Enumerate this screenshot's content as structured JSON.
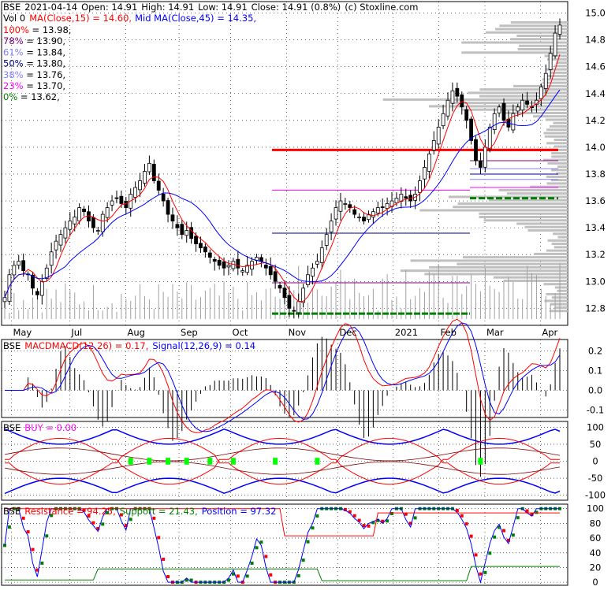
{
  "header": {
    "symbol": "BSE",
    "date": "2021-04-14",
    "open": "Open: 14.91",
    "high": "High: 14.91",
    "low": "Low: 14.91",
    "close": "Close: 14.91 (0.8%)",
    "copyright": "(c) Stoxline.com",
    "vol": "Vol 0",
    "ma15": "MA(Close,15) = 14.60,",
    "ma45": "Mid MA(Close,45) = 14.35,"
  },
  "fib_legend": [
    {
      "label": "100% = 13.98,",
      "color": "#ff0000"
    },
    {
      "label": "78% = 13.90,",
      "color": "#800080"
    },
    {
      "label": "61% = 13.84,",
      "color": "#8080ff"
    },
    {
      "label": "50% = 13.80,",
      "color": "#000080"
    },
    {
      "label": "38% = 13.76,",
      "color": "#8080ff"
    },
    {
      "label": "23% = 13.70,",
      "color": "#ff00ff"
    },
    {
      "label": "0% = 13.62,",
      "color": "#008000"
    }
  ],
  "panels": {
    "macd": {
      "symbol": "BSE",
      "name": "MACD",
      "label": "MACD(12,26) = 0.17,",
      "signal": "Signal(12,26,9) = 0.14"
    },
    "buy": {
      "symbol": "BSE",
      "label": "BUY = 0.00"
    },
    "srp": {
      "symbol": "BSE",
      "resistance": "Resistance = 94.25,",
      "support": "Support = 21.43,",
      "position": "Position = 97.32"
    }
  },
  "colors": {
    "up": "#008000",
    "down": "#ff0000",
    "ma_fast": "#ff0000",
    "ma_mid": "#0000ff",
    "volume_profile": "#c0c0c0",
    "grid": "#000000"
  },
  "chart_data": [
    {
      "type": "candlestick",
      "title": "BSE 2021-04-14",
      "x_labels": [
        "May",
        "Jul",
        "Aug",
        "Sep",
        "Oct",
        "Nov",
        "Dec",
        "2021",
        "Feb",
        "Mar",
        "Apr"
      ],
      "y_ticks": [
        "15.0",
        "14.8",
        "14.6",
        "14.4",
        "14.2",
        "14.0",
        "13.8",
        "13.6",
        "13.4",
        "13.2",
        "13.0",
        "12.8"
      ],
      "ylim": [
        12.72,
        15.05
      ],
      "close": [
        12.88,
        13.05,
        13.12,
        13.15,
        13.08,
        13.05,
        12.95,
        12.9,
        13.0,
        13.1,
        13.22,
        13.3,
        13.35,
        13.4,
        13.45,
        13.48,
        13.55,
        13.52,
        13.45,
        13.4,
        13.38,
        13.5,
        13.55,
        13.6,
        13.62,
        13.58,
        13.55,
        13.65,
        13.7,
        13.75,
        13.82,
        13.88,
        13.75,
        13.68,
        13.6,
        13.5,
        13.45,
        13.4,
        13.35,
        13.38,
        13.32,
        13.28,
        13.25,
        13.22,
        13.18,
        13.15,
        13.12,
        13.1,
        13.12,
        13.15,
        13.1,
        13.08,
        13.12,
        13.15,
        13.18,
        13.15,
        13.1,
        13.05,
        13.0,
        12.95,
        12.88,
        12.8,
        12.78,
        12.85,
        12.95,
        13.05,
        13.1,
        13.15,
        13.25,
        13.35,
        13.45,
        13.55,
        13.6,
        13.58,
        13.55,
        13.5,
        13.48,
        13.45,
        13.5,
        13.52,
        13.55,
        13.55,
        13.58,
        13.6,
        13.62,
        13.65,
        13.62,
        13.6,
        13.65,
        13.75,
        13.85,
        13.95,
        14.05,
        14.15,
        14.25,
        14.35,
        14.42,
        14.38,
        14.3,
        14.2,
        14.05,
        13.9,
        13.85,
        14.0,
        14.15,
        14.25,
        14.3,
        14.2,
        14.15,
        14.25,
        14.3,
        14.35,
        14.32,
        14.3,
        14.35,
        14.45,
        14.55,
        14.7,
        14.85,
        14.91
      ],
      "ma15_label": "MA(Close,15) = 14.60",
      "ma45_label": "Mid MA(Close,45) = 14.35",
      "fib_levels": [
        13.98,
        13.9,
        13.84,
        13.8,
        13.76,
        13.7,
        13.62
      ],
      "support_lines": [
        12.76,
        13.62
      ],
      "resistance_lines": [
        13.98,
        13.36,
        13.68,
        12.99
      ]
    },
    {
      "type": "line",
      "title": "MACD(12,26)",
      "y_ticks": [
        "0.2",
        "0.1",
        "0.0",
        "-0.1"
      ],
      "ylim": [
        -0.13,
        0.25
      ],
      "series": [
        {
          "name": "MACD(12,26)",
          "last": 0.17
        },
        {
          "name": "Signal(12,26,9)",
          "last": 0.14
        }
      ]
    },
    {
      "type": "line",
      "title": "BUY",
      "y_ticks": [
        "100",
        "50",
        "0",
        "-50",
        "-100"
      ],
      "ylim": [
        -110,
        110
      ],
      "series": [
        {
          "name": "BUY",
          "last": 0.0
        }
      ]
    },
    {
      "type": "line",
      "title": "Resistance / Support / Position",
      "y_ticks": [
        "100",
        "80",
        "60",
        "40",
        "20",
        "0"
      ],
      "ylim": [
        -2,
        104
      ],
      "series": [
        {
          "name": "Resistance",
          "last": 94.25
        },
        {
          "name": "Support",
          "last": 21.43
        },
        {
          "name": "Position",
          "last": 97.32
        }
      ]
    }
  ]
}
